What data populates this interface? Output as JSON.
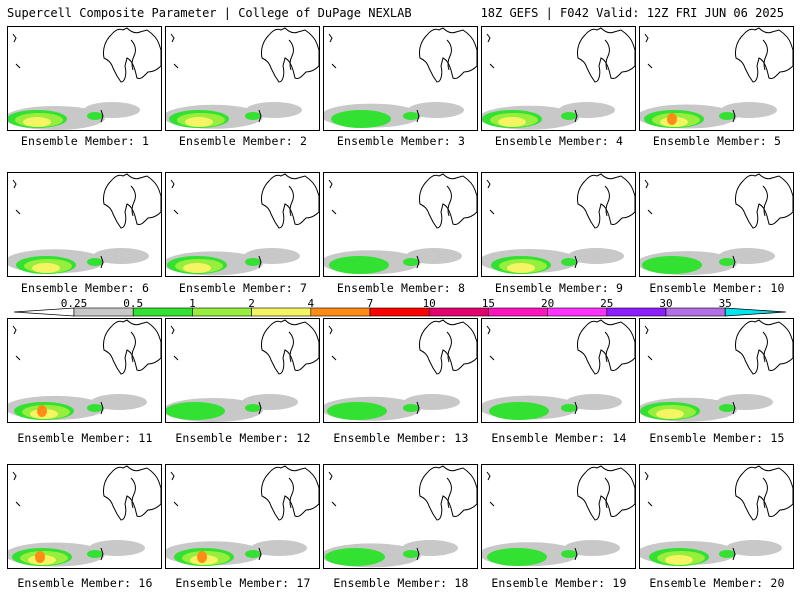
{
  "header": {
    "title_left": "Supercell Composite Parameter | College of DuPage NEXLAB",
    "title_right": "18Z GEFS | F042 Valid: 12Z FRI JUN 06 2025"
  },
  "colorbar": {
    "thresholds": [
      "0.25",
      "0.5",
      "1",
      "2",
      "4",
      "7",
      "10",
      "15",
      "20",
      "25",
      "30",
      "35"
    ],
    "colors": [
      "#c8c8c8",
      "#32e132",
      "#98ee3c",
      "#f5f564",
      "#ff8c14",
      "#ff0000",
      "#e1006e",
      "#ff14be",
      "#ff32ff",
      "#8c1eff",
      "#b46ee6",
      "#00e6f0"
    ]
  },
  "members": [
    {
      "label": "Ensemble Member: 1",
      "intensity": 2
    },
    {
      "label": "Ensemble Member: 2",
      "intensity": 2
    },
    {
      "label": "Ensemble Member: 3",
      "intensity": 1
    },
    {
      "label": "Ensemble Member: 4",
      "intensity": 2
    },
    {
      "label": "Ensemble Member: 5",
      "intensity": 3
    },
    {
      "label": "Ensemble Member: 6",
      "intensity": 2
    },
    {
      "label": "Ensemble Member: 7",
      "intensity": 2
    },
    {
      "label": "Ensemble Member: 8",
      "intensity": 1
    },
    {
      "label": "Ensemble Member: 9",
      "intensity": 2
    },
    {
      "label": "Ensemble Member: 10",
      "intensity": 1
    },
    {
      "label": "Ensemble Member: 11",
      "intensity": 3
    },
    {
      "label": "Ensemble Member: 12",
      "intensity": 1
    },
    {
      "label": "Ensemble Member: 13",
      "intensity": 1
    },
    {
      "label": "Ensemble Member: 14",
      "intensity": 1
    },
    {
      "label": "Ensemble Member: 15",
      "intensity": 2
    },
    {
      "label": "Ensemble Member: 16",
      "intensity": 3
    },
    {
      "label": "Ensemble Member: 17",
      "intensity": 3
    },
    {
      "label": "Ensemble Member: 18",
      "intensity": 1
    },
    {
      "label": "Ensemble Member: 19",
      "intensity": 1
    },
    {
      "label": "Ensemble Member: 20",
      "intensity": 2
    }
  ]
}
